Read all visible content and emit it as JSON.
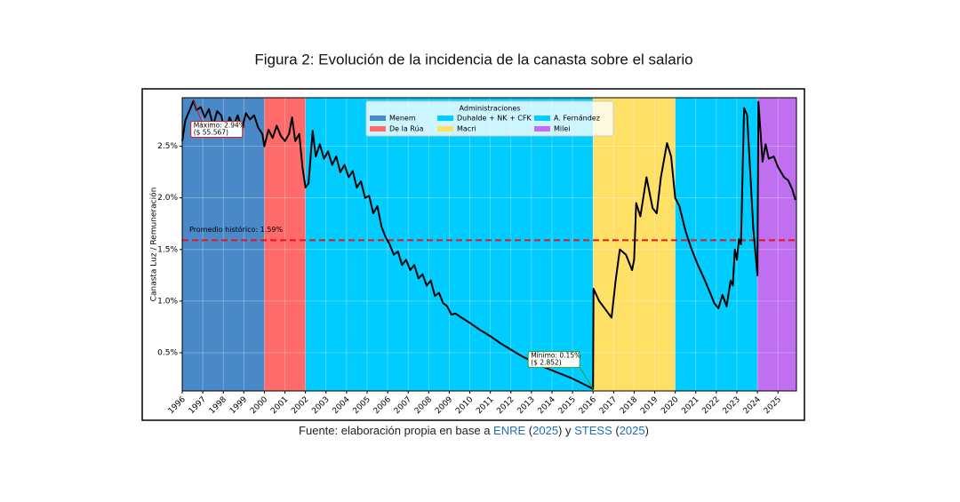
{
  "title": "Figura 2: Evolución de la incidencia de la canasta sobre el salario",
  "caption": [
    {
      "text": "Fuente: elaboración propia en base a ",
      "color": "#222222"
    },
    {
      "text": "ENRE",
      "color": "#1f6fb5"
    },
    {
      "text": " (",
      "color": "#222222"
    },
    {
      "text": "2025",
      "color": "#1f6fb5"
    },
    {
      "text": ") y ",
      "color": "#222222"
    },
    {
      "text": "STESS",
      "color": "#1f6fb5"
    },
    {
      "text": " (",
      "color": "#222222"
    },
    {
      "text": "2025",
      "color": "#1f6fb5"
    },
    {
      "text": ")",
      "color": "#222222"
    }
  ],
  "chart_data": {
    "type": "line",
    "y_label": "Canasta Luz / Remuneración",
    "legend_title": "Administraciones",
    "periods": [
      {
        "name": "Menem",
        "start": 1996,
        "end": 2000,
        "color": "#4a89c8"
      },
      {
        "name": "De la Rúa",
        "start": 2000,
        "end": 2002,
        "color": "#ff6b6b"
      },
      {
        "name": "Duhalde + NK + CFK",
        "start": 2002,
        "end": 2016,
        "color": "#00ccff"
      },
      {
        "name": "Macri",
        "start": 2016,
        "end": 2020,
        "color": "#ffe066"
      },
      {
        "name": "A. Fernández",
        "start": 2020,
        "end": 2024,
        "color": "#00ccff"
      },
      {
        "name": "Milei",
        "start": 2024,
        "end": 2025.9,
        "color": "#bf6ff0"
      }
    ],
    "color": "#000000",
    "x": [
      1996.0,
      1996.15,
      1996.3,
      1996.55,
      1996.7,
      1996.9,
      1997.1,
      1997.3,
      1997.5,
      1997.7,
      1997.9,
      1998.1,
      1998.3,
      1998.5,
      1998.7,
      1998.9,
      1999.1,
      1999.3,
      1999.5,
      1999.7,
      1999.9,
      2000.0,
      2000.2,
      2000.4,
      2000.6,
      2000.8,
      2001.0,
      2001.2,
      2001.35,
      2001.5,
      2001.7,
      2001.85,
      2002.0,
      2002.15,
      2002.35,
      2002.5,
      2002.7,
      2002.9,
      2003.1,
      2003.3,
      2003.5,
      2003.7,
      2003.9,
      2004.1,
      2004.3,
      2004.5,
      2004.7,
      2004.9,
      2005.1,
      2005.3,
      2005.5,
      2005.7,
      2005.9,
      2006.1,
      2006.3,
      2006.5,
      2006.7,
      2006.9,
      2007.1,
      2007.3,
      2007.5,
      2007.7,
      2007.9,
      2008.1,
      2008.3,
      2008.5,
      2008.7,
      2008.9,
      2009.1,
      2009.3,
      2009.6,
      2010.0,
      2010.5,
      2011.0,
      2011.5,
      2012.0,
      2012.5,
      2013.0,
      2013.5,
      2014.0,
      2014.5,
      2015.0,
      2015.5,
      2016.0,
      2016.02,
      2016.3,
      2016.6,
      2016.9,
      2017.1,
      2017.3,
      2017.6,
      2017.9,
      2018.0,
      2018.1,
      2018.3,
      2018.6,
      2018.9,
      2019.1,
      2019.3,
      2019.6,
      2019.8,
      2020.0,
      2020.2,
      2020.5,
      2020.8,
      2021.1,
      2021.4,
      2021.7,
      2021.9,
      2022.1,
      2022.3,
      2022.5,
      2022.7,
      2022.8,
      2022.9,
      2023.0,
      2023.1,
      2023.2,
      2023.35,
      2023.5,
      2023.8,
      2024.0,
      2024.05,
      2024.25,
      2024.4,
      2024.55,
      2024.8,
      2025.0,
      2025.3,
      2025.5,
      2025.7,
      2025.85
    ],
    "values": [
      2.55,
      2.75,
      2.82,
      2.94,
      2.85,
      2.88,
      2.78,
      2.86,
      2.7,
      2.84,
      2.8,
      2.62,
      2.78,
      2.7,
      2.8,
      2.66,
      2.82,
      2.76,
      2.8,
      2.68,
      2.62,
      2.5,
      2.66,
      2.58,
      2.7,
      2.6,
      2.55,
      2.62,
      2.78,
      2.55,
      2.62,
      2.3,
      2.1,
      2.14,
      2.65,
      2.4,
      2.52,
      2.38,
      2.45,
      2.32,
      2.4,
      2.25,
      2.32,
      2.2,
      2.26,
      2.1,
      2.16,
      2.0,
      2.02,
      1.85,
      1.92,
      1.72,
      1.62,
      1.55,
      1.45,
      1.48,
      1.35,
      1.4,
      1.3,
      1.35,
      1.22,
      1.26,
      1.15,
      1.2,
      1.05,
      1.08,
      0.98,
      0.95,
      0.87,
      0.88,
      0.84,
      0.79,
      0.72,
      0.66,
      0.59,
      0.53,
      0.47,
      0.42,
      0.37,
      0.33,
      0.29,
      0.25,
      0.2,
      0.15,
      1.12,
      1.0,
      0.92,
      0.84,
      1.2,
      1.5,
      1.45,
      1.3,
      1.4,
      1.95,
      1.82,
      2.2,
      1.9,
      1.85,
      2.2,
      2.53,
      2.4,
      2.0,
      1.92,
      1.68,
      1.5,
      1.35,
      1.22,
      1.08,
      0.98,
      0.93,
      1.06,
      0.95,
      1.2,
      1.15,
      1.5,
      1.4,
      1.6,
      1.55,
      2.87,
      2.8,
      1.7,
      1.25,
      2.93,
      2.35,
      2.52,
      2.38,
      2.4,
      2.3,
      2.2,
      2.17,
      2.08,
      1.98
    ],
    "xlim": [
      1996,
      2025.9
    ],
    "xticks": [
      1996,
      1997,
      1998,
      1999,
      2000,
      2001,
      2002,
      2003,
      2004,
      2005,
      2006,
      2007,
      2008,
      2009,
      2010,
      2011,
      2012,
      2013,
      2014,
      2015,
      2016,
      2017,
      2018,
      2019,
      2020,
      2021,
      2022,
      2023,
      2024,
      2025
    ],
    "ylim": [
      0.13,
      2.97
    ],
    "yticks": [
      {
        "value": 0.5,
        "label": "0.5%"
      },
      {
        "value": 1.0,
        "label": "1.0%"
      },
      {
        "value": 1.5,
        "label": "1.5%"
      },
      {
        "value": 2.0,
        "label": "2.0%"
      },
      {
        "value": 2.5,
        "label": "2.5%"
      }
    ],
    "grid": true,
    "hline": {
      "value": 1.59,
      "label": "Promedio histórico: 1.59%",
      "color": "#e8141b"
    },
    "annotations": [
      {
        "x": 1996.55,
        "y": 2.94,
        "lines": [
          "Máximo: 2.94%",
          "($ 55.567)"
        ],
        "color": "#d42020"
      },
      {
        "x": 2016.0,
        "y": 0.15,
        "lines": [
          "Mínimo: 0.15%",
          "($ 2.852)"
        ],
        "color": "#2ca02c"
      }
    ]
  }
}
